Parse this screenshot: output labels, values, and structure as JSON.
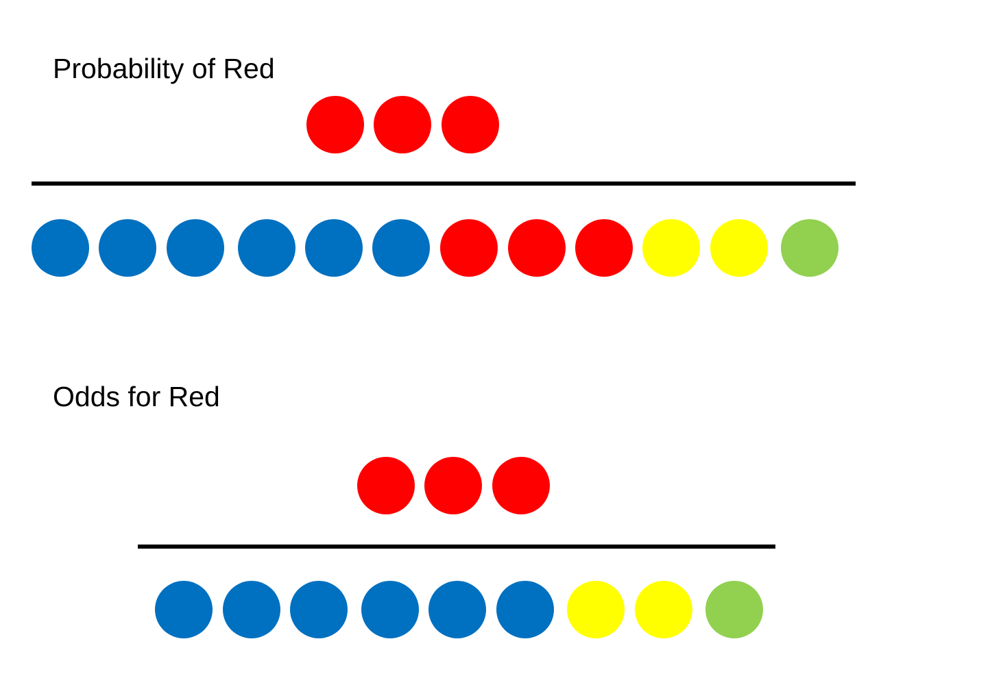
{
  "colors": {
    "red": "#ff0000",
    "blue": "#0070c0",
    "yellow": "#ffff00",
    "green": "#92d050",
    "fraction_bar": "#000000"
  },
  "sections": [
    {
      "id": "probability",
      "title": "Probability of Red",
      "numerator": [
        "red",
        "red",
        "red"
      ],
      "denominator": [
        "blue",
        "blue",
        "blue",
        "blue",
        "blue",
        "blue",
        "red",
        "red",
        "red",
        "yellow",
        "yellow",
        "green"
      ]
    },
    {
      "id": "odds",
      "title": "Odds for Red",
      "numerator": [
        "red",
        "red",
        "red"
      ],
      "denominator": [
        "blue",
        "blue",
        "blue",
        "blue",
        "blue",
        "blue",
        "yellow",
        "yellow",
        "green"
      ]
    }
  ]
}
